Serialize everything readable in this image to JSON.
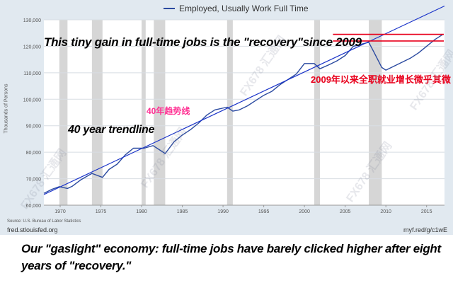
{
  "legend": {
    "label": "Employed, Usually Work Full Time",
    "color": "#2b4aa0"
  },
  "y_axis_label": "Thousands of Persons",
  "source": "Source: U.S. Bureau of Labor Statistics",
  "fred_url": "fred.stlouisfed.org",
  "short_url": "myf.red/g/c1wE",
  "annotations": {
    "headline": "This tiny gain in full-time jobs is the \"recovery\"since 2009",
    "cn_recovery": "2009年以来全职就业增长微乎其微",
    "cn_trend": "40年趋势线",
    "trend_label": "40 year trendline"
  },
  "caption": "Our \"gaslight\" economy: full-time jobs have barely clicked higher after eight years of \"recovery.\"",
  "watermark": "FX678 汇通网",
  "colors": {
    "series": "#2b4aa0",
    "trend": "#1a33c9",
    "highlight": "#e8001c",
    "recession": "#c8c8c8",
    "panel": "#e1e9f0",
    "plot": "#ffffff"
  },
  "chart_data": {
    "type": "line",
    "x_ticks": [
      "1970",
      "1975",
      "1980",
      "1985",
      "1990",
      "1995",
      "2000",
      "2005",
      "2010",
      "2015"
    ],
    "y_ticks": [
      "60,000",
      "70,000",
      "80,000",
      "90,000",
      "100,000",
      "110,000",
      "120,000",
      "130,000"
    ],
    "xlim": [
      1968,
      2017.2
    ],
    "ylim": [
      60000,
      130000
    ],
    "grid": true,
    "legend_position": "top-center",
    "recessions": [
      [
        1969.9,
        1970.9
      ],
      [
        1973.9,
        1975.2
      ],
      [
        1980.0,
        1980.5
      ],
      [
        1981.5,
        1982.9
      ],
      [
        1990.5,
        1991.2
      ],
      [
        2001.2,
        2001.9
      ],
      [
        2007.9,
        2009.5
      ]
    ],
    "series": [
      {
        "name": "Employed, Usually Work Full Time",
        "x": [
          1968,
          1969,
          1969.9,
          1970.9,
          1971.5,
          1972.5,
          1973.9,
          1975.2,
          1976,
          1977,
          1978,
          1979,
          1980.3,
          1981.4,
          1982.9,
          1984,
          1985,
          1986,
          1987,
          1988,
          1989,
          1990.5,
          1991.2,
          1992,
          1993,
          1994,
          1995,
          1996,
          1997,
          1998,
          1999,
          2000,
          2001.2,
          2001.9,
          2003,
          2004,
          2005,
          2006,
          2007.9,
          2008.5,
          2009.5,
          2010,
          2011,
          2012,
          2013,
          2014,
          2015,
          2016,
          2017
        ],
        "values": [
          64500,
          66000,
          67000,
          66300,
          67200,
          69500,
          72000,
          70500,
          73500,
          75500,
          79000,
          81500,
          81500,
          82500,
          79500,
          84000,
          86500,
          88500,
          91000,
          94000,
          96000,
          97000,
          95500,
          96000,
          97500,
          99500,
          101500,
          103000,
          105500,
          107500,
          109500,
          113500,
          113500,
          111500,
          113000,
          114500,
          116500,
          120000,
          121500,
          118000,
          112000,
          111000,
          112500,
          114000,
          115500,
          117500,
          120000,
          122500,
          124500
        ]
      },
      {
        "name": "40 year trendline",
        "x": [
          1968,
          2017.2
        ],
        "values": [
          64000,
          135200
        ]
      }
    ],
    "reference_lines": [
      122000,
      124500
    ]
  }
}
